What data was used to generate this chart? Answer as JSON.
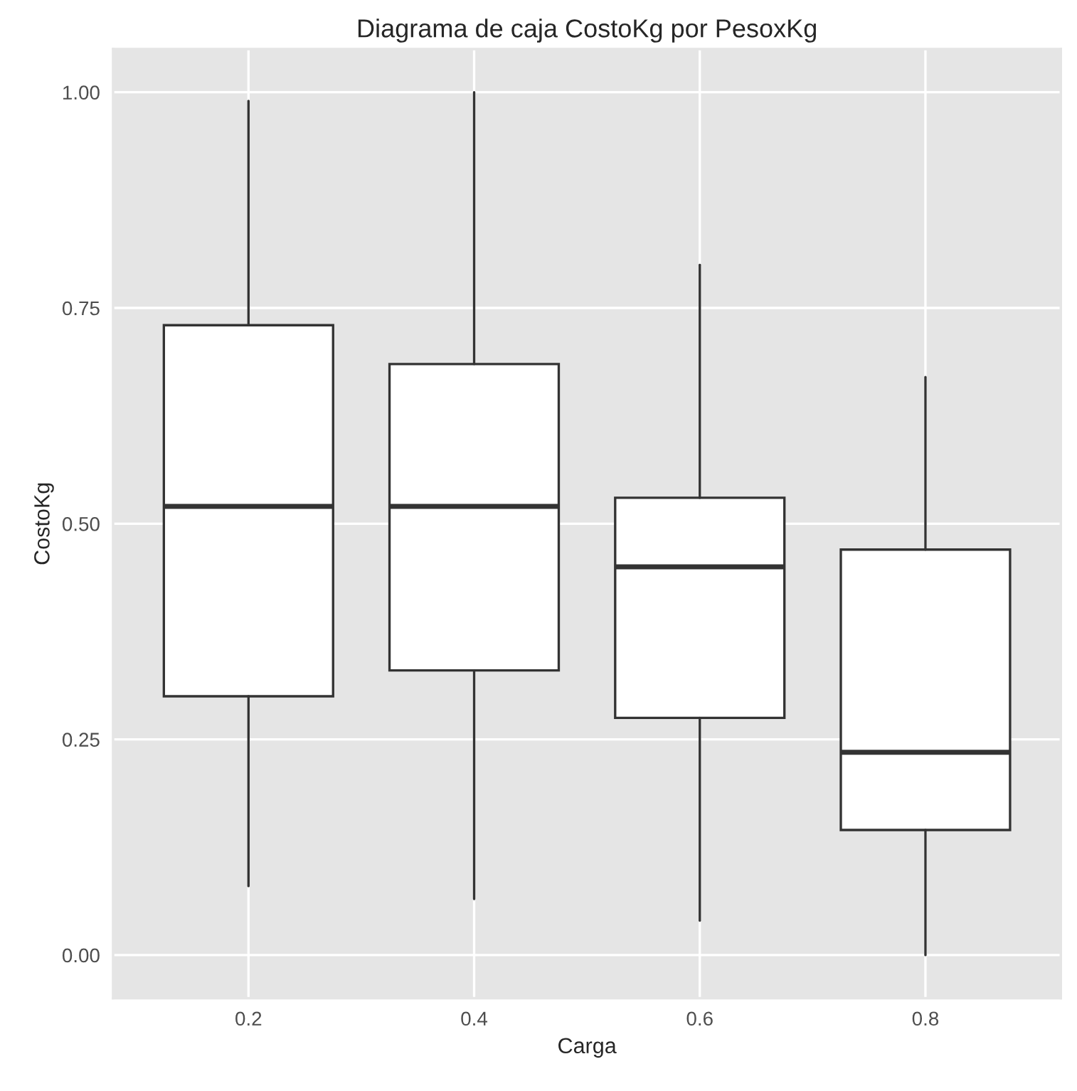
{
  "chart_data": {
    "type": "box",
    "title": "Diagrama de caja CostoKg por PesoxKg",
    "xlabel": "Carga",
    "ylabel": "CostoKg",
    "categories": [
      "0.2",
      "0.4",
      "0.6",
      "0.8"
    ],
    "boxes": [
      {
        "low": 0.08,
        "q1": 0.3,
        "median": 0.52,
        "q3": 0.73,
        "high": 0.99
      },
      {
        "low": 0.065,
        "q1": 0.33,
        "median": 0.52,
        "q3": 0.685,
        "high": 1.0
      },
      {
        "low": 0.04,
        "q1": 0.275,
        "median": 0.45,
        "q3": 0.53,
        "high": 0.8
      },
      {
        "low": 0.0,
        "q1": 0.145,
        "median": 0.235,
        "q3": 0.47,
        "high": 0.67
      }
    ],
    "color": "#ffffff",
    "ylim": [
      -0.05,
      1.05
    ],
    "yticks": [
      {
        "value": 0,
        "label": "0.00"
      },
      {
        "value": 0.25,
        "label": "0.25"
      },
      {
        "value": 0.5,
        "label": "0.50"
      },
      {
        "value": 0.75,
        "label": "0.75"
      },
      {
        "value": 1,
        "label": "1.00"
      }
    ],
    "grid": true
  }
}
